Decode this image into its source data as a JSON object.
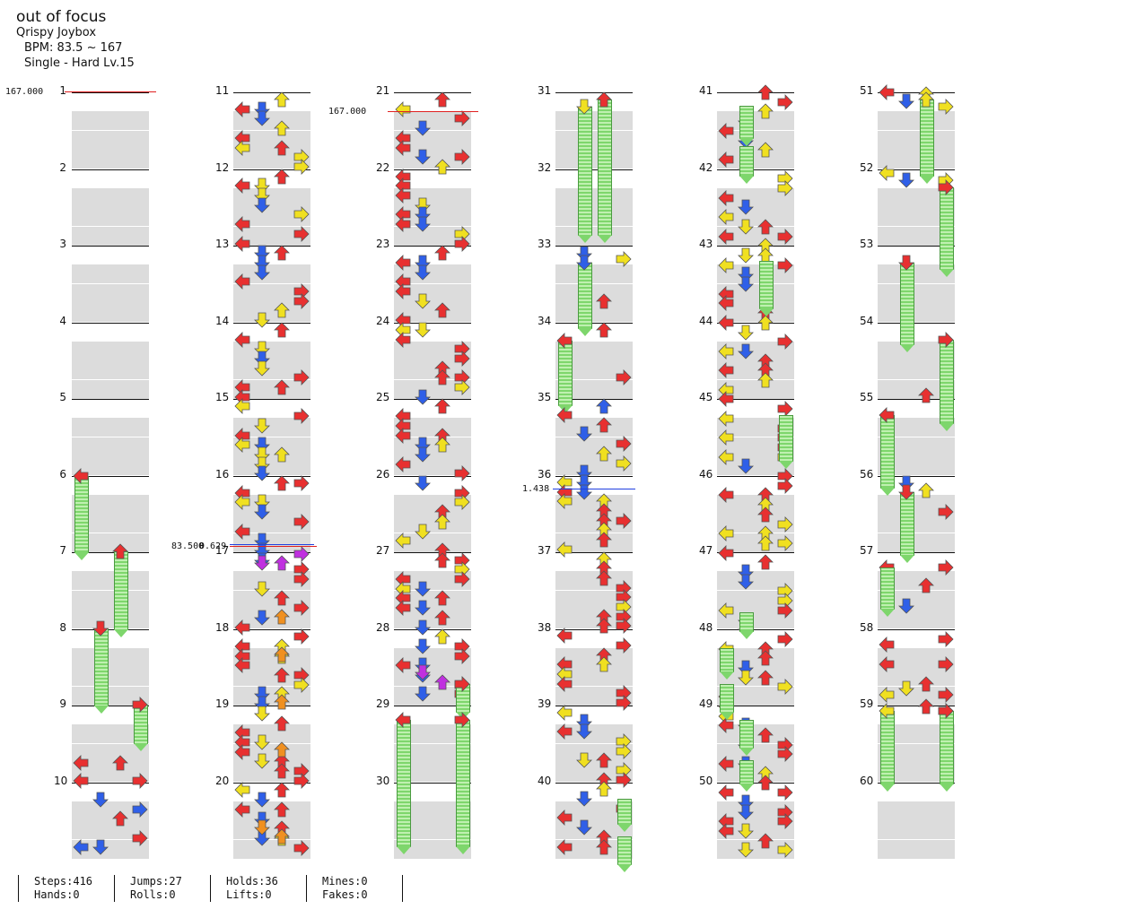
{
  "song": {
    "title": "out of focus",
    "artist": "Qrispy Joybox",
    "bpm": "BPM: 83.5 ~ 167",
    "chart": "Single - Hard  Lv.15"
  },
  "measure_labels": [
    "1",
    "2",
    "3",
    "4",
    "5",
    "6",
    "7",
    "8",
    "9",
    "10",
    "11",
    "12",
    "13",
    "14",
    "15",
    "16",
    "17",
    "18",
    "19",
    "20",
    "21",
    "22",
    "23",
    "24",
    "25",
    "26",
    "27",
    "28",
    "29",
    "30",
    "31",
    "32",
    "33",
    "34",
    "35",
    "36",
    "37",
    "38",
    "39",
    "40",
    "41",
    "42",
    "43",
    "44",
    "45",
    "46",
    "47",
    "48",
    "49",
    "50",
    "51",
    "52",
    "53",
    "54",
    "55",
    "56",
    "57",
    "58",
    "59",
    "60"
  ],
  "bpm_markers": [
    {
      "label": "167.000",
      "color": "#e02020"
    },
    {
      "label": "167.000",
      "color": "#e02020"
    },
    {
      "label": "83.500",
      "color": "#e02020"
    },
    {
      "label": "0.629",
      "color": "#2040e0"
    },
    {
      "label": "1.438",
      "color": "#2040e0"
    }
  ],
  "colors": {
    "left": "#e83030",
    "down": "#2f5fe8",
    "up": "#e83030",
    "right": "#e83030",
    "yellow": "#f0e020",
    "purple": "#c030e0",
    "orange": "#f09020",
    "hold": "#7ed66c"
  },
  "stats": {
    "steps": "Steps:416",
    "hands": "Hands:0",
    "jumps": "Jumps:27",
    "rolls": "Rolls:0",
    "holds": "Holds:36",
    "lifts": "Lifts:0",
    "mines": "Mines:0",
    "fakes": "Fakes:0"
  }
}
